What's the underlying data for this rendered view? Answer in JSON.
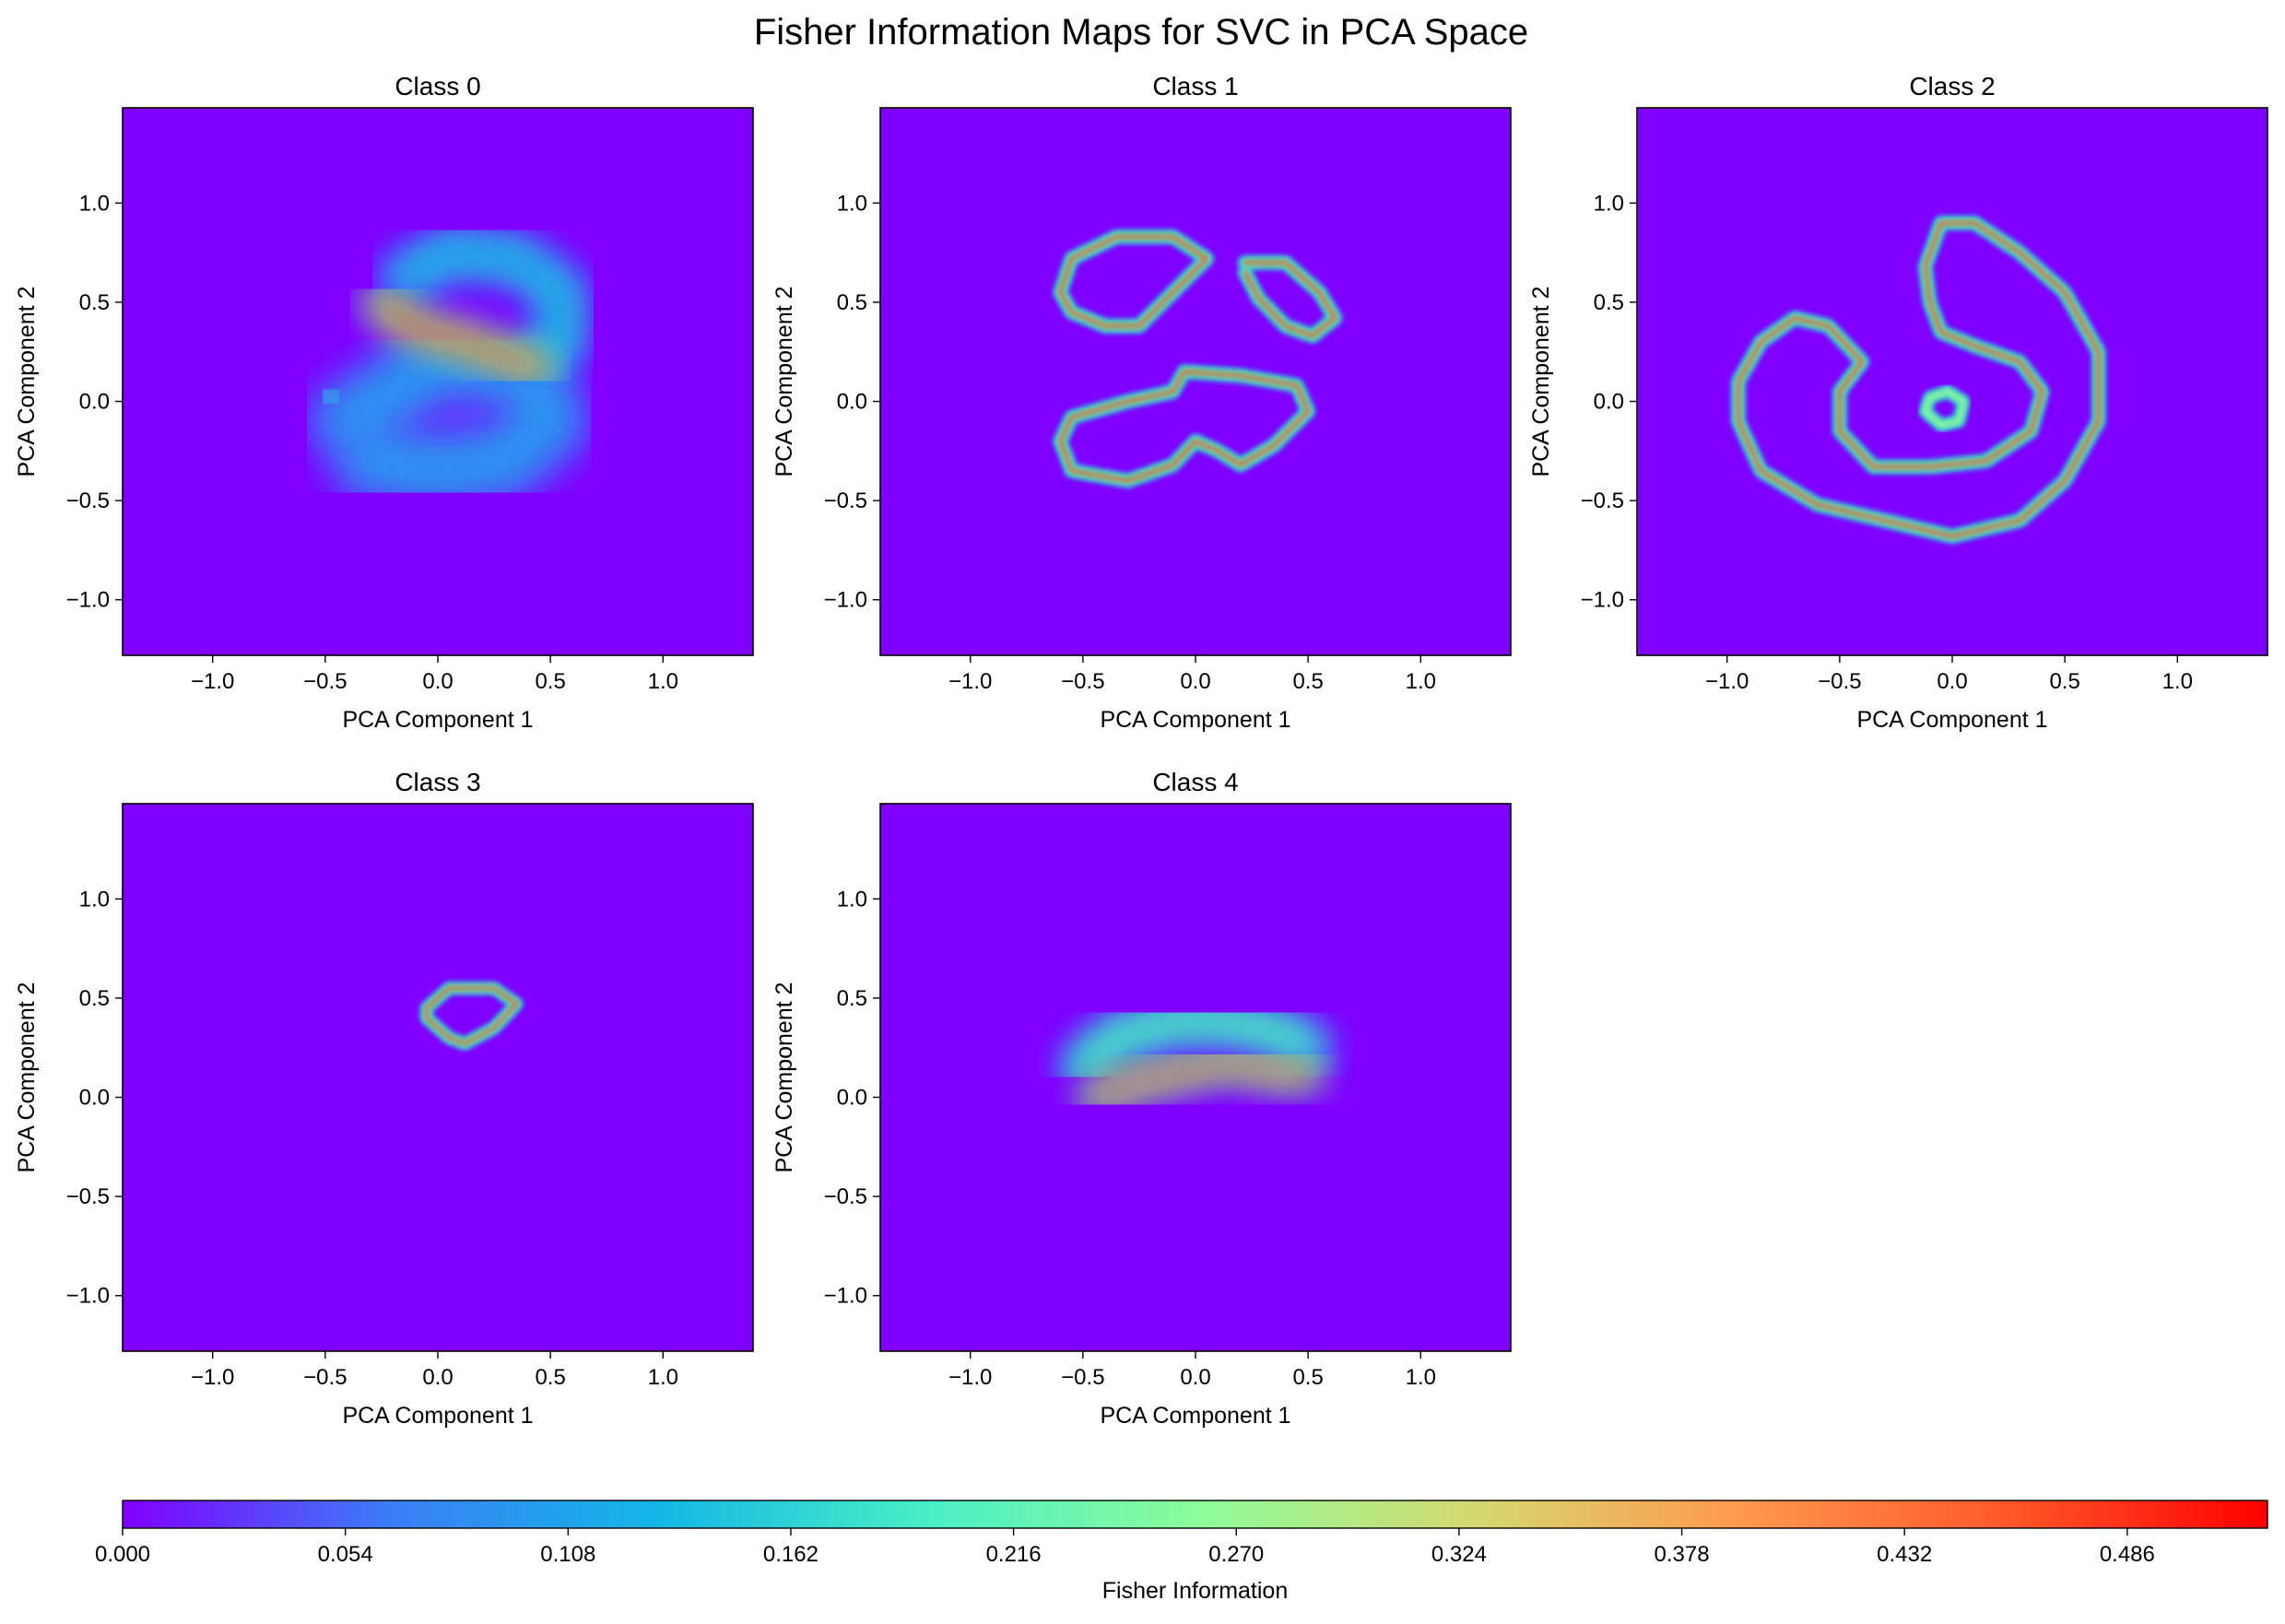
{
  "figure": {
    "suptitle": "Fisher Information Maps for SVC in PCA Space"
  },
  "colormap": {
    "name": "rainbow",
    "stops": [
      "#8000ff",
      "#3b7df6",
      "#13b7e5",
      "#4aeec6",
      "#8bfc9a",
      "#d2db72",
      "#ff9b4f",
      "#ff5a2b",
      "#ff0000"
    ]
  },
  "chart_data": [
    {
      "type": "heatmap",
      "title": "Class 0",
      "xlabel": "PCA Component 1",
      "ylabel": "PCA Component 2",
      "xlim": [
        -1.4,
        1.4
      ],
      "ylim": [
        -1.28,
        1.48
      ],
      "xticks": [
        -1.0,
        -0.5,
        0.0,
        0.5,
        1.0
      ],
      "yticks": [
        -1.0,
        -0.5,
        0.0,
        0.5,
        1.0
      ],
      "features": [
        {
          "kind": "blob",
          "points": [
            [
              -0.3,
              -0.3
            ],
            [
              0.0,
              -0.35
            ],
            [
              0.3,
              -0.3
            ],
            [
              0.5,
              -0.1
            ],
            [
              0.4,
              0.15
            ],
            [
              0.0,
              0.2
            ],
            [
              -0.4,
              -0.1
            ]
          ],
          "value": 0.1,
          "width": 0.26,
          "softness": 0.7
        },
        {
          "kind": "ring",
          "points": [
            [
              -0.15,
              0.62
            ],
            [
              0.05,
              0.75
            ],
            [
              0.35,
              0.72
            ],
            [
              0.55,
              0.55
            ],
            [
              0.55,
              0.3
            ],
            [
              0.4,
              0.18
            ]
          ],
          "value": 0.15,
          "width": 0.15,
          "softness": 0.8
        },
        {
          "kind": "band",
          "points": [
            [
              -0.25,
              0.5
            ],
            [
              -0.15,
              0.4
            ],
            [
              0.0,
              0.33
            ],
            [
              0.15,
              0.29
            ],
            [
              0.3,
              0.22
            ],
            [
              0.45,
              0.17
            ]
          ],
          "value": 0.5,
          "width": 0.1,
          "softness": 0.8
        },
        {
          "kind": "blob",
          "points": [
            [
              -0.4,
              0.35
            ],
            [
              -0.4,
              0.25
            ]
          ],
          "value": 0.24,
          "width": 0.08,
          "softness": 0.8
        },
        {
          "kind": "blob",
          "points": [
            [
              -0.5,
              0.0
            ],
            [
              -0.45,
              0.05
            ]
          ],
          "value": 0.2,
          "width": 0.08,
          "softness": 0.8
        }
      ]
    },
    {
      "type": "heatmap",
      "title": "Class 1",
      "xlabel": "PCA Component 1",
      "ylabel": "PCA Component 2",
      "xlim": [
        -1.4,
        1.4
      ],
      "ylim": [
        -1.28,
        1.48
      ],
      "xticks": [
        -1.0,
        -0.5,
        0.0,
        0.5,
        1.0
      ],
      "yticks": [
        -1.0,
        -0.5,
        0.0,
        0.5,
        1.0
      ],
      "features": [
        {
          "kind": "contour",
          "points": [
            [
              -0.6,
              0.55
            ],
            [
              -0.55,
              0.72
            ],
            [
              -0.35,
              0.83
            ],
            [
              -0.1,
              0.83
            ],
            [
              0.05,
              0.72
            ],
            [
              -0.1,
              0.55
            ],
            [
              -0.25,
              0.38
            ],
            [
              -0.4,
              0.38
            ],
            [
              -0.55,
              0.45
            ],
            [
              -0.6,
              0.55
            ]
          ],
          "value": 0.5,
          "width": 0.055,
          "softness": 0.2
        },
        {
          "kind": "contour",
          "points": [
            [
              0.22,
              0.7
            ],
            [
              0.4,
              0.7
            ],
            [
              0.55,
              0.55
            ],
            [
              0.62,
              0.42
            ],
            [
              0.52,
              0.33
            ],
            [
              0.4,
              0.38
            ],
            [
              0.28,
              0.52
            ],
            [
              0.22,
              0.65
            ]
          ],
          "value": 0.5,
          "width": 0.055,
          "softness": 0.2
        },
        {
          "kind": "contour",
          "points": [
            [
              -0.6,
              -0.2
            ],
            [
              -0.55,
              -0.08
            ],
            [
              -0.3,
              0.0
            ],
            [
              -0.1,
              0.05
            ],
            [
              -0.05,
              0.15
            ],
            [
              0.2,
              0.13
            ],
            [
              0.45,
              0.08
            ],
            [
              0.5,
              -0.05
            ],
            [
              0.35,
              -0.22
            ],
            [
              0.2,
              -0.32
            ],
            [
              0.1,
              -0.25
            ],
            [
              0.0,
              -0.2
            ],
            [
              -0.1,
              -0.32
            ],
            [
              -0.3,
              -0.4
            ],
            [
              -0.55,
              -0.35
            ],
            [
              -0.6,
              -0.2
            ]
          ],
          "value": 0.5,
          "width": 0.055,
          "softness": 0.2
        }
      ]
    },
    {
      "type": "heatmap",
      "title": "Class 2",
      "xlabel": "PCA Component 1",
      "ylabel": "PCA Component 2",
      "xlim": [
        -1.4,
        1.4
      ],
      "ylim": [
        -1.28,
        1.48
      ],
      "xticks": [
        -1.0,
        -0.5,
        0.0,
        0.5,
        1.0
      ],
      "yticks": [
        -1.0,
        -0.5,
        0.0,
        0.5,
        1.0
      ],
      "features": [
        {
          "kind": "contour",
          "points": [
            [
              -0.12,
              0.68
            ],
            [
              -0.05,
              0.9
            ],
            [
              0.1,
              0.9
            ],
            [
              0.3,
              0.75
            ],
            [
              0.5,
              0.55
            ],
            [
              0.65,
              0.25
            ],
            [
              0.65,
              -0.1
            ],
            [
              0.5,
              -0.4
            ],
            [
              0.3,
              -0.6
            ],
            [
              0.0,
              -0.68
            ],
            [
              -0.3,
              -0.6
            ],
            [
              -0.6,
              -0.52
            ],
            [
              -0.85,
              -0.35
            ],
            [
              -0.95,
              -0.1
            ],
            [
              -0.95,
              0.1
            ],
            [
              -0.85,
              0.3
            ],
            [
              -0.7,
              0.42
            ],
            [
              -0.55,
              0.38
            ],
            [
              -0.4,
              0.2
            ],
            [
              -0.5,
              0.05
            ],
            [
              -0.5,
              -0.15
            ],
            [
              -0.35,
              -0.33
            ],
            [
              -0.1,
              -0.33
            ],
            [
              0.15,
              -0.3
            ],
            [
              0.35,
              -0.15
            ],
            [
              0.4,
              0.05
            ],
            [
              0.3,
              0.2
            ],
            [
              0.1,
              0.28
            ],
            [
              -0.05,
              0.35
            ],
            [
              -0.1,
              0.5
            ],
            [
              -0.12,
              0.68
            ]
          ],
          "value": 0.5,
          "width": 0.055,
          "softness": 0.2
        },
        {
          "kind": "contour",
          "points": [
            [
              -0.1,
              0.02
            ],
            [
              -0.02,
              0.05
            ],
            [
              0.05,
              0.0
            ],
            [
              0.03,
              -0.1
            ],
            [
              -0.05,
              -0.12
            ],
            [
              -0.12,
              -0.05
            ],
            [
              -0.1,
              0.02
            ]
          ],
          "value": 0.3,
          "width": 0.05,
          "softness": 0.2
        }
      ]
    },
    {
      "type": "heatmap",
      "title": "Class 3",
      "xlabel": "PCA Component 1",
      "ylabel": "PCA Component 2",
      "xlim": [
        -1.4,
        1.4
      ],
      "ylim": [
        -1.28,
        1.48
      ],
      "xticks": [
        -1.0,
        -0.5,
        0.0,
        0.5,
        1.0
      ],
      "yticks": [
        -1.0,
        -0.5,
        0.0,
        0.5,
        1.0
      ],
      "features": [
        {
          "kind": "contour",
          "points": [
            [
              -0.05,
              0.45
            ],
            [
              0.05,
              0.55
            ],
            [
              0.25,
              0.55
            ],
            [
              0.35,
              0.47
            ],
            [
              0.25,
              0.35
            ],
            [
              0.12,
              0.27
            ],
            [
              0.05,
              0.3
            ],
            [
              -0.05,
              0.4
            ],
            [
              -0.05,
              0.45
            ]
          ],
          "value": 0.5,
          "width": 0.05,
          "softness": 0.2
        }
      ]
    },
    {
      "type": "heatmap",
      "title": "Class 4",
      "xlabel": "PCA Component 1",
      "ylabel": "PCA Component 2",
      "xlim": [
        -1.4,
        1.4
      ],
      "ylim": [
        -1.28,
        1.48
      ],
      "xticks": [
        -1.0,
        -0.5,
        0.0,
        0.5,
        1.0
      ],
      "yticks": [
        -1.0,
        -0.5,
        0.0,
        0.5,
        1.0
      ],
      "features": [
        {
          "kind": "ring",
          "points": [
            [
              -0.5,
              0.15
            ],
            [
              -0.35,
              0.3
            ],
            [
              -0.1,
              0.38
            ],
            [
              0.15,
              0.38
            ],
            [
              0.35,
              0.33
            ],
            [
              0.5,
              0.25
            ]
          ],
          "value": 0.24,
          "width": 0.13,
          "softness": 0.7
        },
        {
          "kind": "band",
          "points": [
            [
              -0.45,
              0.0
            ],
            [
              -0.25,
              0.08
            ],
            [
              -0.05,
              0.13
            ],
            [
              0.15,
              0.18
            ],
            [
              0.35,
              0.13
            ],
            [
              0.5,
              0.12
            ]
          ],
          "value": 0.48,
          "width": 0.09,
          "softness": 0.8
        }
      ]
    }
  ],
  "colorbar": {
    "label": "Fisher Information",
    "vmin": 0.0,
    "vmax": 0.52,
    "ticks": [
      "0.000",
      "0.054",
      "0.108",
      "0.162",
      "0.216",
      "0.270",
      "0.324",
      "0.378",
      "0.432",
      "0.486"
    ]
  }
}
